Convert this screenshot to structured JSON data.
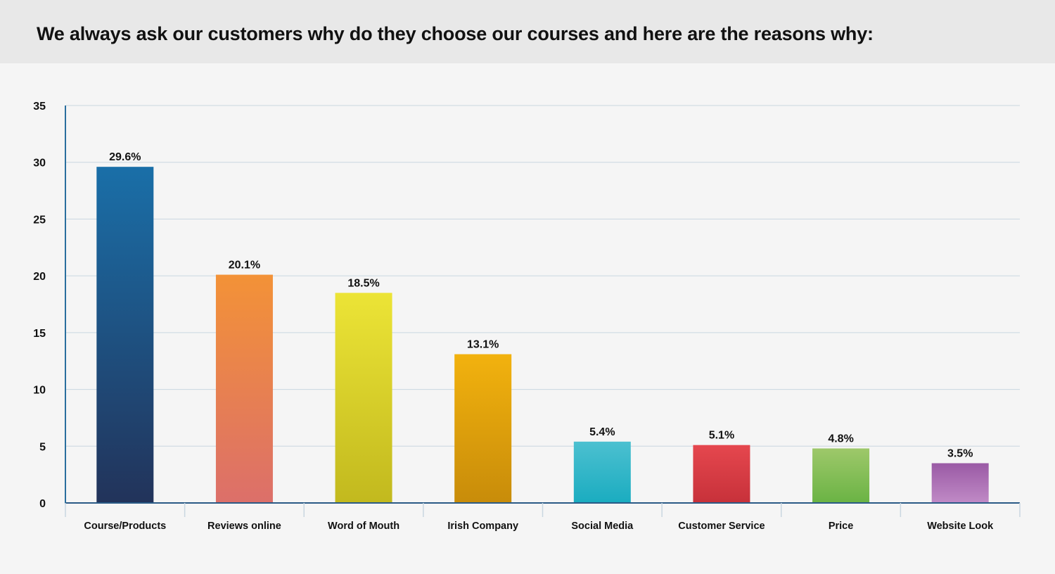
{
  "header": {
    "title": "We always ask our customers why do they choose our courses and here are the reasons why:"
  },
  "chart_data": {
    "type": "bar",
    "title": "We always ask our customers why do they choose our courses and here are the reasons why:",
    "xlabel": "",
    "ylabel": "",
    "ylim": [
      0,
      35
    ],
    "yticks": [
      0,
      5,
      10,
      15,
      20,
      25,
      30,
      35
    ],
    "grid": true,
    "categories": [
      "Course/Products",
      "Reviews online",
      "Word of Mouth",
      "Irish Company",
      "Social Media",
      "Customer Service",
      "Price",
      "Website Look"
    ],
    "values": [
      29.6,
      20.1,
      18.5,
      13.1,
      5.4,
      5.1,
      4.8,
      3.5
    ],
    "data_labels": [
      "29.6%",
      "20.1%",
      "18.5%",
      "13.1%",
      "5.4%",
      "5.1%",
      "4.8%",
      "3.5%"
    ],
    "colors": [
      [
        "#1a6fa8",
        "#22335a"
      ],
      [
        "#f39237",
        "#dc6f6a"
      ],
      [
        "#ece436",
        "#c2b91e"
      ],
      [
        "#f2b20e",
        "#c88c0a"
      ],
      [
        "#4cc0d0",
        "#1aacc0"
      ],
      [
        "#e5474e",
        "#c7313a"
      ],
      [
        "#9ec86a",
        "#6ab344"
      ],
      [
        "#9a5aa5",
        "#c08ac6"
      ]
    ]
  }
}
